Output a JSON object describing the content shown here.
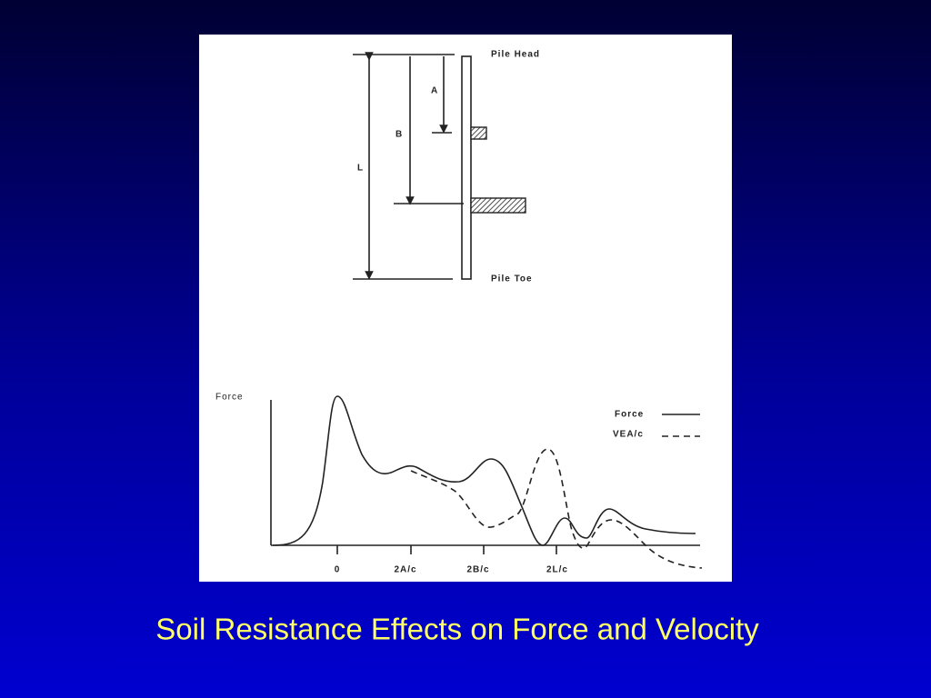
{
  "slide": {
    "title": "Soil Resistance Effects on Force and Velocity"
  },
  "diagram": {
    "pile_head": "Pile Head",
    "pile_toe": "Pile Toe",
    "a_label": "A",
    "b_label": "B",
    "l_label": "L"
  },
  "graph": {
    "y_label": "Force",
    "x_labels": [
      "0",
      "2A/c",
      "2B/c",
      "2L/c"
    ],
    "legend": [
      "Force",
      "VEA/c"
    ]
  }
}
